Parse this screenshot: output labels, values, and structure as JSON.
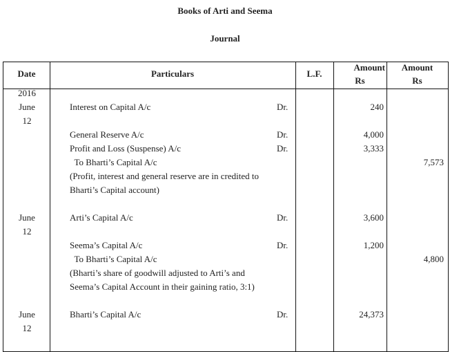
{
  "title": "Books of Arti and Seema",
  "subtitle": "Journal",
  "headers": {
    "date": "Date",
    "particulars": "Particulars",
    "lf": "L.F.",
    "amount1": "Amount",
    "amount1_unit": "Rs",
    "amount2": "Amount",
    "amount2_unit": "Rs"
  },
  "lines": [
    {
      "date": "2016",
      "particulars": "",
      "dr": "",
      "amount1": "",
      "amount2": ""
    },
    {
      "date": "June",
      "particulars": "Interest on Capital A/c",
      "dr": "Dr.",
      "amount1": "240",
      "amount2": ""
    },
    {
      "date": "12",
      "particulars": "",
      "dr": "",
      "amount1": "",
      "amount2": ""
    },
    {
      "date": "",
      "particulars": "General Reserve A/c",
      "dr": "Dr.",
      "amount1": "4,000",
      "amount2": ""
    },
    {
      "date": "",
      "particulars": "Profit and Loss (Suspense) A/c",
      "dr": "Dr.",
      "amount1": "3,333",
      "amount2": ""
    },
    {
      "date": "",
      "particulars": "  To Bharti’s Capital A/c",
      "dr": "",
      "amount1": "",
      "amount2": "7,573"
    },
    {
      "date": "",
      "particulars": "(Profit, interest and general reserve are in credited to",
      "dr": "",
      "amount1": "",
      "amount2": ""
    },
    {
      "date": "",
      "particulars": "Bharti’s Capital account)",
      "dr": "",
      "amount1": "",
      "amount2": ""
    },
    {
      "date": "",
      "particulars": "",
      "dr": "",
      "amount1": "",
      "amount2": ""
    },
    {
      "date": "June",
      "particulars": "Arti’s Capital A/c",
      "dr": "Dr.",
      "amount1": "3,600",
      "amount2": ""
    },
    {
      "date": "12",
      "particulars": "",
      "dr": "",
      "amount1": "",
      "amount2": ""
    },
    {
      "date": "",
      "particulars": "Seema’s Capital A/c",
      "dr": "Dr.",
      "amount1": "1,200",
      "amount2": ""
    },
    {
      "date": "",
      "particulars": "  To Bharti’s Capital A/c",
      "dr": "",
      "amount1": "",
      "amount2": "4,800"
    },
    {
      "date": "",
      "particulars": "(Bharti’s share of goodwill adjusted to Arti’s and",
      "dr": "",
      "amount1": "",
      "amount2": ""
    },
    {
      "date": "",
      "particulars": "Seema’s Capital Account in their gaining ratio, 3:1)",
      "dr": "",
      "amount1": "",
      "amount2": ""
    },
    {
      "date": "",
      "particulars": "",
      "dr": "",
      "amount1": "",
      "amount2": ""
    },
    {
      "date": "June",
      "particulars": "Bharti’s Capital A/c",
      "dr": "Dr.",
      "amount1": "24,373",
      "amount2": ""
    },
    {
      "date": "12",
      "particulars": "",
      "dr": "",
      "amount1": "",
      "amount2": ""
    }
  ]
}
